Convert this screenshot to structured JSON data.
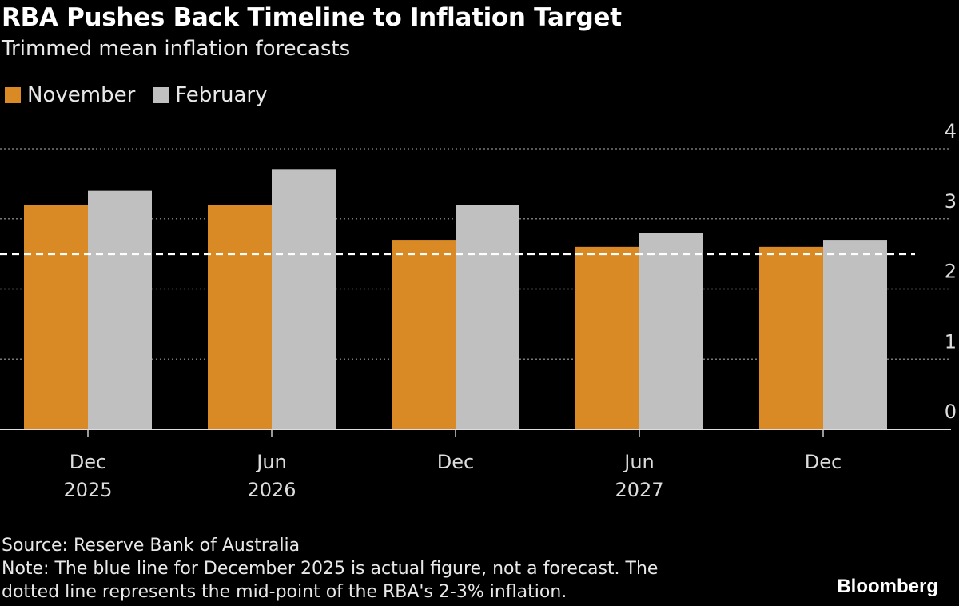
{
  "chart_data": {
    "type": "bar",
    "title": "RBA Pushes Back Timeline to Inflation Target",
    "subtitle": "Trimmed mean inflation forecasts",
    "categories": [
      [
        "Dec",
        "2025"
      ],
      [
        "Jun",
        "2026"
      ],
      [
        "Dec",
        ""
      ],
      [
        "Jun",
        "2027"
      ],
      [
        "Dec",
        ""
      ]
    ],
    "series": [
      {
        "name": "November",
        "color": "#d98a25",
        "values": [
          3.2,
          3.2,
          2.7,
          2.6,
          2.6
        ]
      },
      {
        "name": "February",
        "color": "#c0c0c0",
        "values": [
          3.4,
          3.7,
          3.2,
          2.8,
          2.7
        ]
      }
    ],
    "reference_line": {
      "value": 2.5,
      "style": "dashed",
      "color": "#ffffff"
    },
    "ylim": [
      0,
      4
    ],
    "yticks": [
      "0",
      "1",
      "2",
      "3",
      "4"
    ],
    "y_axis_position": "right",
    "grid": true,
    "legend_position": "top-left"
  },
  "footer": {
    "source": "Source: Reserve Bank of Australia",
    "note_line1": "Note: The blue line for December 2025 is actual figure, not a forecast. The",
    "note_line2": "dotted line represents the mid-point of the RBA's 2-3% inflation.",
    "brand": "Bloomberg"
  }
}
